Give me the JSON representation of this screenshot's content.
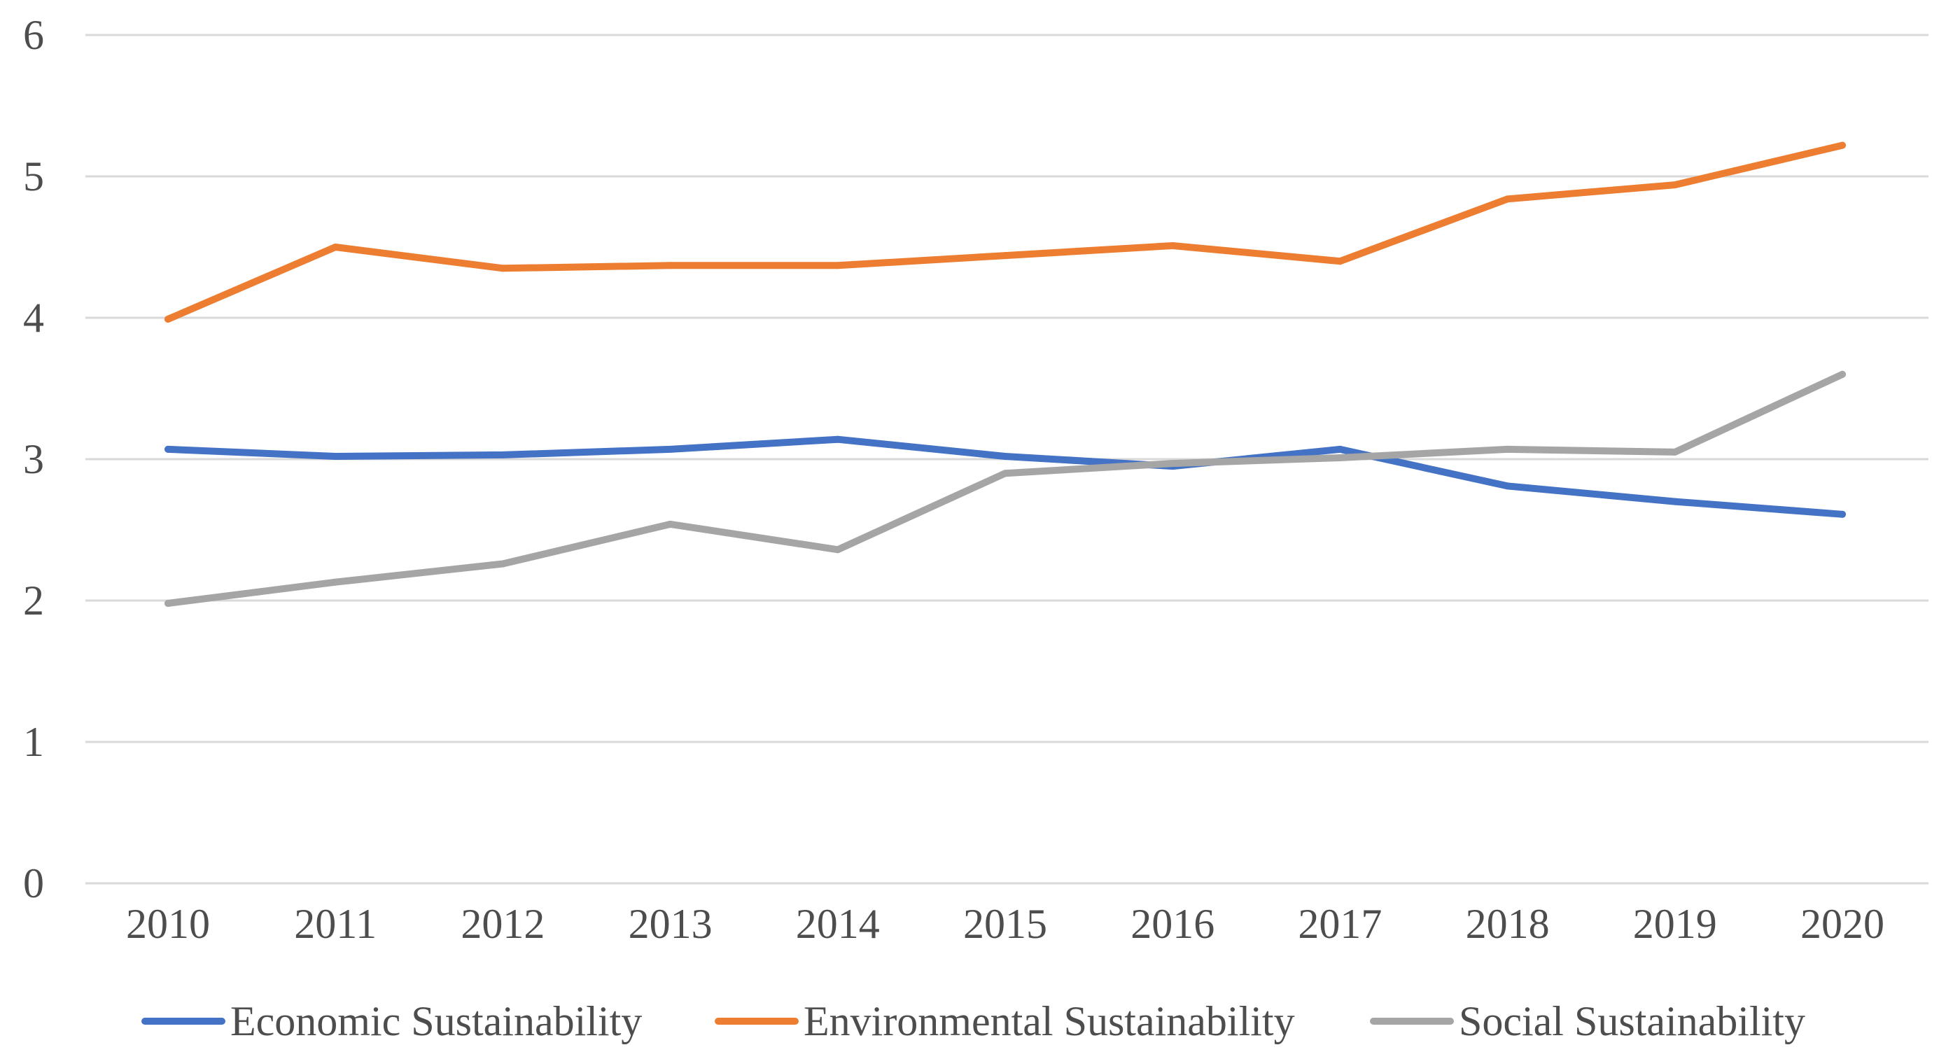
{
  "chart_data": {
    "type": "line",
    "title": "",
    "xlabel": "",
    "ylabel": "",
    "categories": [
      "2010",
      "2011",
      "2012",
      "2013",
      "2014",
      "2015",
      "2016",
      "2017",
      "2018",
      "2019",
      "2020"
    ],
    "ylim": [
      0,
      6
    ],
    "yticks": [
      "0",
      "1",
      "2",
      "3",
      "4",
      "5",
      "6"
    ],
    "grid": true,
    "legend_position": "bottom",
    "series": [
      {
        "name": "Economic Sustainability",
        "color": "#4472c4",
        "values": [
          3.07,
          3.02,
          3.03,
          3.07,
          3.14,
          3.02,
          2.95,
          3.07,
          2.81,
          2.7,
          2.61
        ]
      },
      {
        "name": "Environmental Sustainability",
        "color": "#ed7d31",
        "values": [
          3.99,
          4.5,
          4.35,
          4.37,
          4.37,
          4.44,
          4.51,
          4.4,
          4.84,
          4.94,
          5.22
        ]
      },
      {
        "name": "Social Sustainability",
        "color": "#a5a5a5",
        "values": [
          1.98,
          2.13,
          2.26,
          2.54,
          2.36,
          2.9,
          2.97,
          3.01,
          3.07,
          3.05,
          3.6
        ]
      }
    ]
  }
}
